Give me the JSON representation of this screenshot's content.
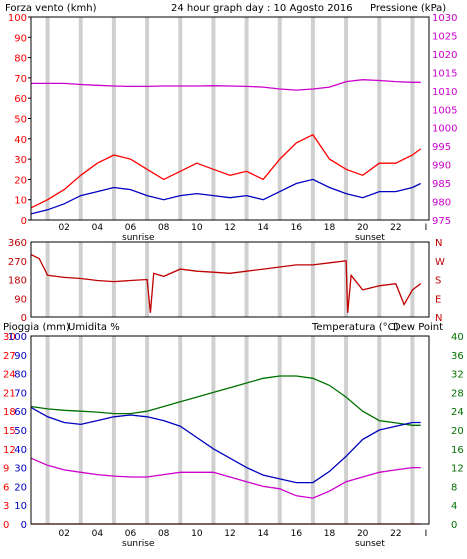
{
  "colors": {
    "wind": "#ff0000",
    "wind_avg": "#0000c0",
    "pressure": "#cc00cc",
    "direction": "#c00000",
    "temperature": "#007000",
    "humidity": "#0000c0",
    "dewpoint": "#cc00cc",
    "rain": "#ff0000",
    "grid": "#d0d0d0",
    "frame": "#000000"
  },
  "x_ticks": [
    "02",
    "04",
    "06",
    "08",
    "10",
    "12",
    "14",
    "16",
    "18",
    "20",
    "22"
  ],
  "x_end_tick": "I",
  "sunrise_label": "sunrise",
  "sunset_label": "sunset",
  "chart_data": [
    {
      "type": "line",
      "title": "24 hour graph day : 10 Agosto 2016",
      "ylabel_left": "Forza vento (kmh)",
      "ylabel_right": "Pressione (kPa)",
      "left_ticks": [
        "100",
        "90",
        "80",
        "70",
        "60",
        "50",
        "40",
        "30",
        "20",
        "10",
        "0"
      ],
      "right_ticks": [
        "1030",
        "1025",
        "1020",
        "1015",
        "1010",
        "1005",
        "1000",
        "995",
        "990",
        "985",
        "980",
        "975"
      ],
      "ylim_left": [
        0,
        100
      ],
      "ylim_right": [
        975,
        1030
      ],
      "x_hours": [
        0,
        1,
        2,
        3,
        4,
        5,
        6,
        7,
        8,
        9,
        10,
        11,
        12,
        13,
        14,
        15,
        16,
        17,
        18,
        19,
        20,
        21,
        22,
        23,
        23.5
      ],
      "series": [
        {
          "role": "wind_gust",
          "values": [
            6,
            10,
            15,
            22,
            28,
            32,
            30,
            25,
            20,
            24,
            28,
            25,
            22,
            24,
            20,
            30,
            38,
            42,
            30,
            25,
            22,
            28,
            28,
            32,
            35
          ]
        },
        {
          "role": "wind_avg",
          "values": [
            3,
            5,
            8,
            12,
            14,
            16,
            15,
            12,
            10,
            12,
            13,
            12,
            11,
            12,
            10,
            14,
            18,
            20,
            16,
            13,
            11,
            14,
            14,
            16,
            18
          ]
        },
        {
          "role": "pressure",
          "values": [
            1012,
            1012,
            1012,
            1011.7,
            1011.5,
            1011.3,
            1011.2,
            1011.2,
            1011.3,
            1011.3,
            1011.3,
            1011.4,
            1011.3,
            1011.2,
            1011,
            1010.5,
            1010.2,
            1010.5,
            1011,
            1012.5,
            1013,
            1012.8,
            1012.5,
            1012.3,
            1012.3
          ]
        }
      ]
    },
    {
      "type": "line",
      "left_ticks": [
        "360",
        "270",
        "180",
        "90",
        "0"
      ],
      "right_ticks": [
        "N",
        "W",
        "S",
        "E",
        "N"
      ],
      "ylim": [
        0,
        360
      ],
      "x_hours": [
        0,
        0.5,
        1,
        2,
        3,
        4,
        5,
        6,
        7,
        7.2,
        7.4,
        8,
        9,
        10,
        11,
        12,
        13,
        14,
        15,
        16,
        17,
        18,
        19,
        19.1,
        19.3,
        20,
        21,
        22,
        22.5,
        23,
        23.5
      ],
      "values": [
        300,
        280,
        200,
        190,
        185,
        175,
        170,
        175,
        180,
        20,
        210,
        195,
        230,
        220,
        215,
        210,
        220,
        230,
        240,
        250,
        250,
        260,
        270,
        20,
        200,
        130,
        150,
        160,
        60,
        130,
        160
      ]
    },
    {
      "type": "line",
      "ylabel_left_1": "Pioggia (mm)",
      "ylabel_left_2": "Umidita %",
      "ylabel_right_1": "Temperatura (°C)",
      "ylabel_right_2": "Dew Point",
      "rain_ticks": [
        "30",
        "27",
        "24",
        "21",
        "18",
        "15",
        "12",
        "9",
        "6",
        "3",
        "0"
      ],
      "humidity_ticks": [
        "100",
        "90",
        "80",
        "70",
        "60",
        "50",
        "40",
        "30",
        "20",
        "10",
        "0"
      ],
      "temp_ticks": [
        "40",
        "36",
        "32",
        "28",
        "24",
        "20",
        "16",
        "12",
        "8",
        "4",
        "0"
      ],
      "ylim_humidity": [
        0,
        100
      ],
      "ylim_temp": [
        0,
        40
      ],
      "x_hours": [
        0,
        1,
        2,
        3,
        4,
        5,
        6,
        7,
        8,
        9,
        10,
        11,
        12,
        13,
        14,
        15,
        16,
        17,
        18,
        19,
        20,
        21,
        22,
        23,
        23.5
      ],
      "series": [
        {
          "role": "temperature",
          "values": [
            25,
            24.5,
            24.2,
            24,
            23.8,
            23.5,
            23.5,
            24,
            25,
            26,
            27,
            28,
            29,
            30,
            31,
            31.5,
            31.5,
            31,
            29.5,
            27,
            24,
            22,
            21.5,
            21,
            21
          ]
        },
        {
          "role": "humidity",
          "values": [
            62,
            57,
            54,
            53,
            55,
            57,
            58,
            57,
            55,
            52,
            46,
            40,
            35,
            30,
            26,
            24,
            22,
            22,
            28,
            36,
            45,
            50,
            52,
            54,
            54
          ]
        },
        {
          "role": "dewpoint",
          "values": [
            14,
            12.5,
            11.5,
            11,
            10.5,
            10.2,
            10,
            10,
            10.5,
            11,
            11,
            11,
            10,
            9,
            8,
            7.5,
            6,
            5.5,
            7,
            9,
            10,
            11,
            11.5,
            12,
            12
          ]
        },
        {
          "role": "rain",
          "values": [
            0,
            0,
            0,
            0,
            0,
            0,
            0,
            0,
            0,
            0,
            0,
            0,
            0,
            0,
            0,
            0,
            0,
            0,
            0,
            0,
            0,
            0,
            0,
            0,
            0
          ]
        }
      ]
    }
  ]
}
